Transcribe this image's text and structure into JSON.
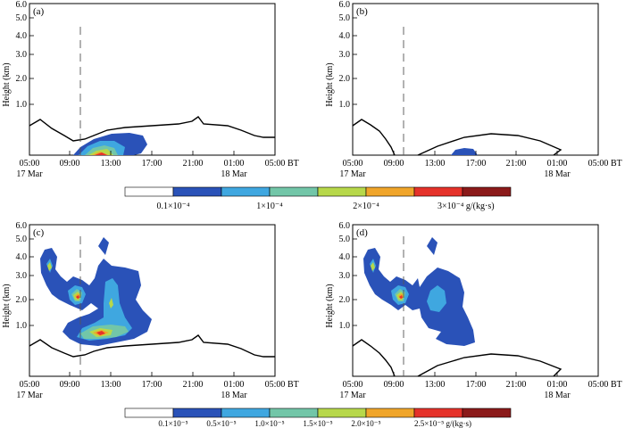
{
  "chart_data": [
    {
      "type": "contour",
      "panel_label": "(a)",
      "ylabel": "Height (km)",
      "y_ticks": [
        "6.0",
        "5.0",
        "4.0",
        "3.0",
        "2.0",
        "1.0"
      ],
      "x_ticks": [
        "05:00",
        "09:00",
        "13:00",
        "17:00",
        "21:00",
        "01:00",
        "05:00"
      ],
      "x_date_labels": [
        "17 Mar",
        "18 Mar"
      ],
      "x_unit": "BT",
      "legend_ref": 0
    },
    {
      "type": "contour",
      "panel_label": "(b)",
      "ylabel": "Height (km)",
      "y_ticks": [
        "6.0",
        "5.0",
        "4.0",
        "3.0",
        "2.0",
        "1.0"
      ],
      "x_ticks": [
        "05:00",
        "09:00",
        "13:00",
        "17:00",
        "21:00",
        "01:00",
        "05:00"
      ],
      "x_date_labels": [
        "17 Mar",
        "18 Mar"
      ],
      "x_unit": "BT",
      "legend_ref": 0
    },
    {
      "type": "contour",
      "panel_label": "(c)",
      "ylabel": "Height (km)",
      "y_ticks": [
        "6.0",
        "5.0",
        "4.0",
        "3.0",
        "2.0",
        "1.0"
      ],
      "x_ticks": [
        "05:00",
        "09:00",
        "13:00",
        "17:00",
        "21:00",
        "01:00",
        "05:00"
      ],
      "x_date_labels": [
        "17 Mar",
        "18 Mar"
      ],
      "x_unit": "BT",
      "legend_ref": 1
    },
    {
      "type": "contour",
      "panel_label": "(d)",
      "ylabel": "Height (km)",
      "y_ticks": [
        "6.0",
        "5.0",
        "4.0",
        "3.0",
        "2.0",
        "1.0"
      ],
      "x_ticks": [
        "05:00",
        "09:00",
        "13:00",
        "17:00",
        "21:00",
        "01:00",
        "05:00"
      ],
      "x_date_labels": [
        "17 Mar",
        "18 Mar"
      ],
      "x_unit": "BT",
      "legend_ref": 1
    }
  ],
  "legends": [
    {
      "colors": [
        "#ffffff",
        "#2a52b8",
        "#3fa7e0",
        "#72c6a8",
        "#b7d84a",
        "#f0a52a",
        "#e5322a",
        "#8b1a1a"
      ],
      "labels": [
        "0.1×10⁻⁴",
        "1×10⁻⁴",
        "2×10⁻⁴",
        "3×10⁻⁴ g/(kg·s)"
      ]
    },
    {
      "colors": [
        "#ffffff",
        "#2a52b8",
        "#3fa7e0",
        "#72c6a8",
        "#b7d84a",
        "#f0a52a",
        "#e5322a",
        "#8b1a1a"
      ],
      "labels": [
        "0.1×10⁻⁵",
        "0.5×10⁻⁵",
        "1.0×10⁻⁵",
        "1.5×10⁻⁵",
        "2.0×10⁻⁵",
        "2.5×10⁻⁵ g/(kg·s)"
      ]
    }
  ],
  "colors": {
    "level1": "#2a52b8",
    "level2": "#3fa7e0",
    "level3": "#72c6a8",
    "level4": "#b7d84a",
    "level5": "#f0a52a",
    "level6": "#e5322a",
    "level7": "#8b1a1a"
  }
}
